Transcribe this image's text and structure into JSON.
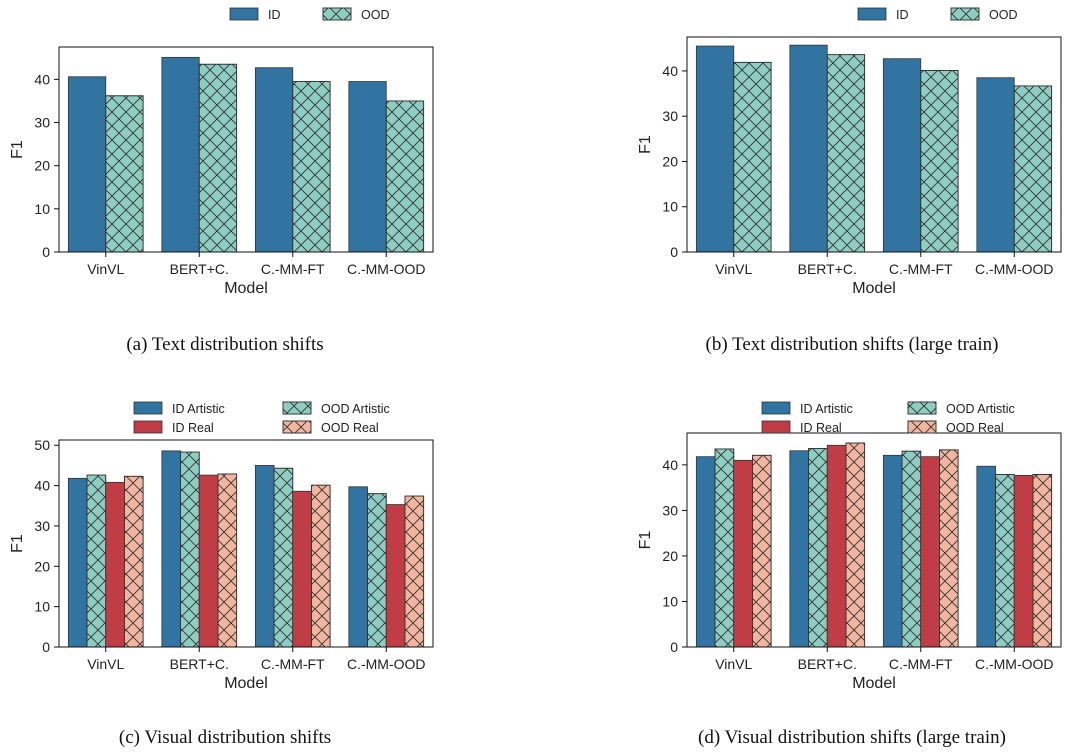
{
  "colors": {
    "id": "#3274a1",
    "ood": "#8ecdc1",
    "id_artistic": "#3274a1",
    "ood_artistic": "#8ecdc1",
    "id_real": "#c03d45",
    "ood_real": "#f2b59f",
    "edge": "#333333"
  },
  "chart_data": [
    {
      "type": "bar",
      "caption": "(a) Text distribution shifts",
      "xlabel": "Model",
      "ylabel": "F1",
      "categories": [
        "VinVL",
        "BERT+C.",
        "C.-MM-FT",
        "C.-MM-OOD"
      ],
      "ylim": [
        0,
        47.5
      ],
      "yticks": [
        "0",
        "10",
        "20",
        "30",
        "40"
      ],
      "legend_position": "top-center",
      "series": [
        {
          "name": "ID",
          "color_key": "id",
          "hatch": false,
          "values": [
            40.6,
            45.1,
            42.7,
            39.5
          ]
        },
        {
          "name": "OOD",
          "color_key": "ood",
          "hatch": true,
          "values": [
            36.2,
            43.5,
            39.5,
            35.0
          ]
        }
      ]
    },
    {
      "type": "bar",
      "caption": "(b) Text distribution shifts (large train)",
      "xlabel": "Model",
      "ylabel": "F1",
      "categories": [
        "VinVL",
        "BERT+C.",
        "C.-MM-FT",
        "C.-MM-OOD"
      ],
      "ylim": [
        0,
        47.5
      ],
      "yticks": [
        "0",
        "10",
        "20",
        "30",
        "40"
      ],
      "legend_position": "top-right",
      "series": [
        {
          "name": "ID",
          "color_key": "id",
          "hatch": false,
          "values": [
            45.5,
            45.7,
            42.7,
            38.5
          ]
        },
        {
          "name": "OOD",
          "color_key": "ood",
          "hatch": true,
          "values": [
            41.9,
            43.6,
            40.1,
            36.7
          ]
        }
      ]
    },
    {
      "type": "bar",
      "caption": "(c) Visual distribution shifts",
      "xlabel": "Model",
      "ylabel": "F1",
      "categories": [
        "VinVL",
        "BERT+C.",
        "C.-MM-FT",
        "C.-MM-OOD"
      ],
      "ylim": [
        0,
        51.3
      ],
      "yticks": [
        "0",
        "10",
        "20",
        "30",
        "40",
        "50"
      ],
      "legend_position": "top-center",
      "series": [
        {
          "name": "ID Artistic",
          "color_key": "id_artistic",
          "hatch": false,
          "values": [
            41.8,
            48.6,
            45.0,
            39.7
          ]
        },
        {
          "name": "OOD Artistic",
          "color_key": "ood_artistic",
          "hatch": true,
          "values": [
            42.6,
            48.3,
            44.3,
            38.0
          ]
        },
        {
          "name": "ID Real",
          "color_key": "id_real",
          "hatch": false,
          "values": [
            40.8,
            42.6,
            38.6,
            35.3
          ]
        },
        {
          "name": "OOD Real",
          "color_key": "ood_real",
          "hatch": true,
          "values": [
            42.3,
            42.9,
            40.1,
            37.4
          ]
        }
      ]
    },
    {
      "type": "bar",
      "caption": "(d) Visual distribution shifts (large train)",
      "xlabel": "Model",
      "ylabel": "F1",
      "categories": [
        "VinVL",
        "BERT+C.",
        "C.-MM-FT",
        "C.-MM-OOD"
      ],
      "ylim": [
        0,
        47.0
      ],
      "yticks": [
        "0",
        "10",
        "20",
        "30",
        "40"
      ],
      "legend_position": "top-right",
      "series": [
        {
          "name": "ID Artistic",
          "color_key": "id_artistic",
          "hatch": false,
          "values": [
            41.8,
            43.1,
            42.1,
            39.7
          ]
        },
        {
          "name": "OOD Artistic",
          "color_key": "ood_artistic",
          "hatch": true,
          "values": [
            43.5,
            43.6,
            43.0,
            37.9
          ]
        },
        {
          "name": "ID Real",
          "color_key": "id_real",
          "hatch": false,
          "values": [
            41.0,
            44.3,
            41.8,
            37.7
          ]
        },
        {
          "name": "OOD Real",
          "color_key": "ood_real",
          "hatch": true,
          "values": [
            42.1,
            44.8,
            43.3,
            37.9
          ]
        }
      ]
    }
  ]
}
